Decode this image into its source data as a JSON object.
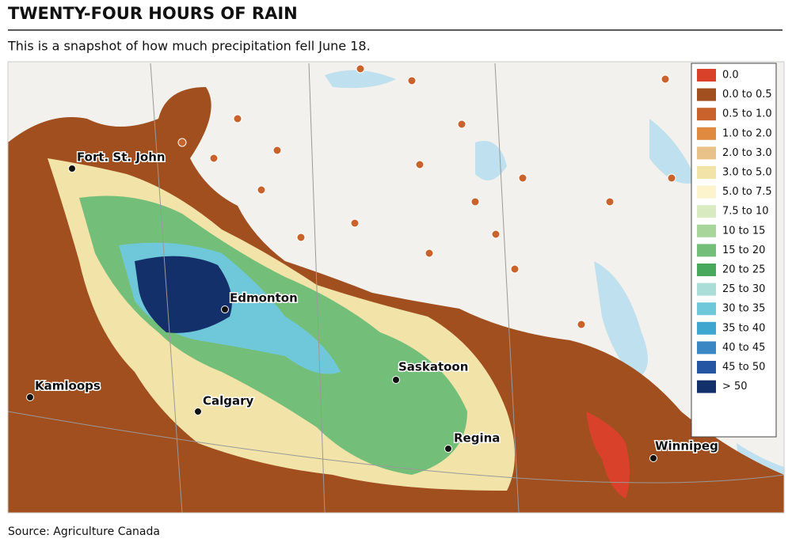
{
  "title": "TWENTY-FOUR HOURS OF RAIN",
  "subtitle": "This is a snapshot of how much precipitation fell June 18.",
  "source": "Source: Agriculture Canada",
  "legend": [
    {
      "label": "0.0",
      "color": "#d9412b"
    },
    {
      "label": "0.0 to 0.5",
      "color": "#a24f1f"
    },
    {
      "label": "0.5 to 1.0",
      "color": "#c9622b"
    },
    {
      "label": "1.0 to 2.0",
      "color": "#df8a3e"
    },
    {
      "label": "2.0 to 3.0",
      "color": "#e8c289"
    },
    {
      "label": "3.0 to 5.0",
      "color": "#f2e3a9"
    },
    {
      "label": "5.0 to 7.5",
      "color": "#fbf4cd"
    },
    {
      "label": "7.5 to 10",
      "color": "#d8ebc0"
    },
    {
      "label": "10 to 15",
      "color": "#a8d59a"
    },
    {
      "label": "15 to 20",
      "color": "#73bf79"
    },
    {
      "label": "20 to 25",
      "color": "#48a85b"
    },
    {
      "label": "25 to 30",
      "color": "#aadcd8"
    },
    {
      "label": "30 to 35",
      "color": "#6fc8d9"
    },
    {
      "label": "35 to 40",
      "color": "#3ea6cf"
    },
    {
      "label": "40 to 45",
      "color": "#3b87c4"
    },
    {
      "label": "45 to 50",
      "color": "#2456a4"
    },
    {
      "label": "> 50",
      "color": "#13306b"
    }
  ],
  "cities": [
    "Fort. St. John",
    "Edmonton",
    "Kamloops",
    "Calgary",
    "Saskatoon",
    "Regina",
    "Winnipeg"
  ]
}
